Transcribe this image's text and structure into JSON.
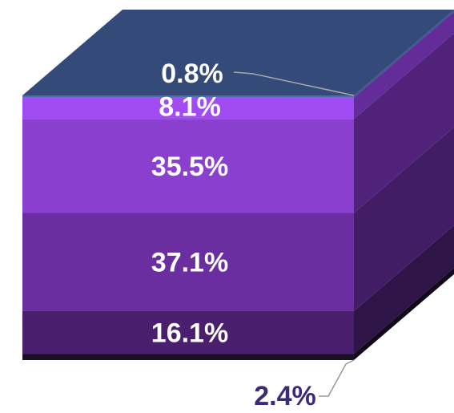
{
  "chart_data": {
    "type": "bar",
    "style": "3d-stacked-block",
    "unit": "%",
    "segments": [
      {
        "value": 2.4,
        "label": "2.4%",
        "front_color": "#1a1024",
        "side_color": "#120a1a",
        "label_color": "#3b2a7a",
        "label_placement": "outside-bottom"
      },
      {
        "value": 16.1,
        "label": "16.1%",
        "front_color": "#4a1f6e",
        "side_color": "#2f1448"
      },
      {
        "value": 37.1,
        "label": "37.1%",
        "front_color": "#6b2ea0",
        "side_color": "#431c66"
      },
      {
        "value": 35.5,
        "label": "35.5%",
        "front_color": "#8a3fcf",
        "side_color": "#50227a"
      },
      {
        "value": 8.1,
        "label": "8.1%",
        "front_color": "#a14cf2",
        "side_color": "#632c98"
      },
      {
        "value": 0.8,
        "label": "0.8%",
        "front_color": "#4a6fa8",
        "side_color": "#3a5890",
        "label_placement": "outside-top"
      }
    ],
    "top_face_color": "#344b79",
    "legend": "none",
    "grid": false
  }
}
